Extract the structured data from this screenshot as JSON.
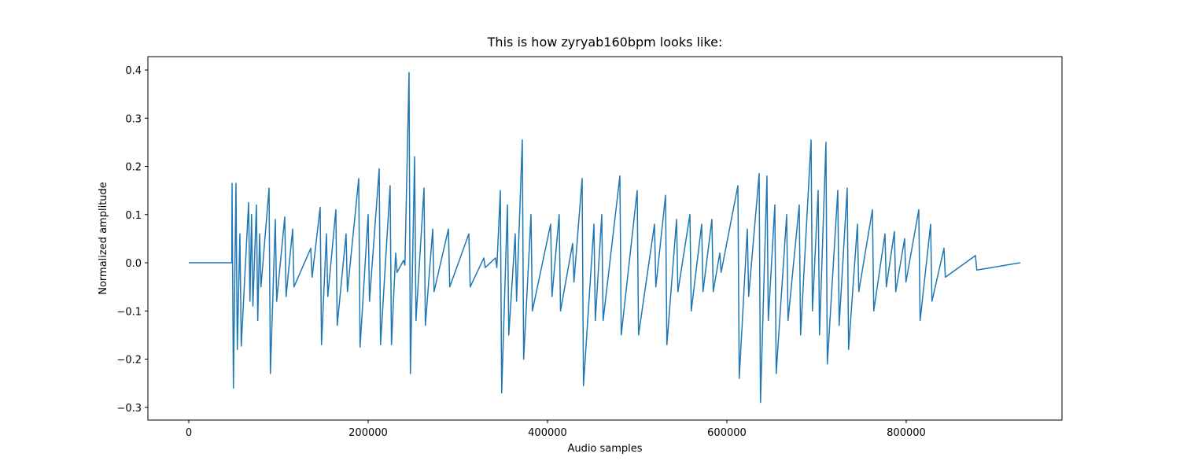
{
  "chart_data": {
    "type": "line",
    "title": "This is how zyryab160bpm looks like:",
    "x_label": "Audio samples",
    "y_label": "Normalized amplitude",
    "xlim": [
      -45600,
      973700
    ],
    "ylim": [
      -0.3265,
      0.4278
    ],
    "xticks": [
      0,
      200000,
      400000,
      600000,
      800000
    ],
    "yticks": [
      {
        "value": -0.3,
        "label": "−0.3"
      },
      {
        "value": -0.2,
        "label": "−0.2"
      },
      {
        "value": -0.1,
        "label": "−0.1"
      },
      {
        "value": 0.0,
        "label": "0.0"
      },
      {
        "value": 0.1,
        "label": "0.1"
      },
      {
        "value": 0.2,
        "label": "0.2"
      },
      {
        "value": 0.3,
        "label": "0.3"
      },
      {
        "value": 0.4,
        "label": "0.4"
      }
    ],
    "series": [
      {
        "color": "#1f77b4",
        "x": [
          0,
          48000,
          48250,
          49750,
          52600,
          54100,
          57000,
          58500,
          66700,
          68200,
          70000,
          71500,
          75400,
          76900,
          79000,
          80500,
          89500,
          91000,
          96500,
          98000,
          107000,
          108500,
          115800,
          117300,
          136000,
          137500,
          146500,
          148000,
          153500,
          155000,
          164000,
          165500,
          175400,
          176900,
          189500,
          191000,
          200000,
          201500,
          212300,
          213800,
          224500,
          226000,
          230700,
          232200,
          239500,
          241000,
          245600,
          247100,
          251800,
          253300,
          262300,
          263800,
          272000,
          273500,
          289500,
          291000,
          312300,
          313800,
          329000,
          330500,
          342000,
          343500,
          347400,
          348900,
          355300,
          356800,
          364000,
          365500,
          371900,
          373400,
          381600,
          383100,
          403500,
          405000,
          413000,
          414500,
          428000,
          429500,
          438600,
          440100,
          451800,
          453300,
          460500,
          462000,
          480700,
          482200,
          500000,
          501500,
          519300,
          520800,
          531600,
          533100,
          543900,
          545400,
          558800,
          560300,
          571900,
          573400,
          583300,
          584800,
          592100,
          593600,
          612300,
          613800,
          622800,
          624300,
          636000,
          637500,
          644700,
          646200,
          653500,
          655000,
          666700,
          668200,
          680700,
          682200,
          693900,
          695400,
          701800,
          703300,
          710500,
          712000,
          723700,
          725200,
          734200,
          735700,
          745600,
          747100,
          762300,
          763800,
          776300,
          777800,
          786800,
          788300,
          798200,
          799700,
          814000,
          815500,
          827200,
          828700,
          842100,
          843600,
          877200,
          878700,
          927200
        ],
        "values": [
          0,
          0,
          0.165,
          -0.26,
          0.165,
          -0.18,
          0.06,
          -0.173,
          0.125,
          -0.08,
          0.1,
          -0.09,
          0.12,
          -0.12,
          0.06,
          -0.05,
          0.155,
          -0.23,
          0.09,
          -0.08,
          0.095,
          -0.07,
          0.07,
          -0.05,
          0.03,
          -0.03,
          0.115,
          -0.17,
          0.06,
          -0.07,
          0.11,
          -0.13,
          0.06,
          -0.06,
          0.175,
          -0.175,
          0.1,
          -0.08,
          0.195,
          -0.17,
          0.16,
          -0.17,
          0.02,
          -0.02,
          0.005,
          -0.005,
          0.395,
          -0.23,
          0.22,
          -0.12,
          0.155,
          -0.13,
          0.07,
          -0.06,
          0.07,
          -0.05,
          0.06,
          -0.05,
          0.01,
          -0.01,
          0.01,
          -0.01,
          0.15,
          -0.27,
          0.12,
          -0.15,
          0.06,
          -0.08,
          0.255,
          -0.2,
          0.1,
          -0.1,
          0.08,
          -0.07,
          0.1,
          -0.1,
          0.04,
          -0.04,
          0.175,
          -0.255,
          0.08,
          -0.12,
          0.1,
          -0.12,
          0.18,
          -0.15,
          0.15,
          -0.15,
          0.08,
          -0.05,
          0.14,
          -0.17,
          0.09,
          -0.06,
          0.1,
          -0.1,
          0.08,
          -0.06,
          0.09,
          -0.06,
          0.02,
          -0.02,
          0.16,
          -0.24,
          0.07,
          -0.07,
          0.185,
          -0.29,
          0.18,
          -0.12,
          0.12,
          -0.23,
          0.1,
          -0.12,
          0.12,
          -0.15,
          0.255,
          -0.1,
          0.15,
          -0.15,
          0.25,
          -0.21,
          0.15,
          -0.13,
          0.155,
          -0.18,
          0.08,
          -0.06,
          0.11,
          -0.1,
          0.06,
          -0.05,
          0.065,
          -0.06,
          0.05,
          -0.04,
          0.11,
          -0.12,
          0.08,
          -0.08,
          0.03,
          -0.03,
          0.015,
          -0.015,
          0
        ]
      }
    ]
  }
}
